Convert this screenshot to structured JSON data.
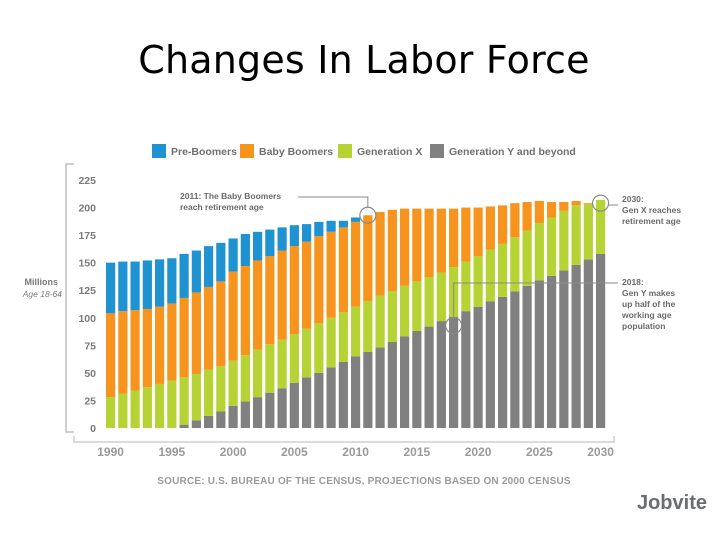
{
  "title": "Changes In Labor Force",
  "chart_data": {
    "type": "bar",
    "stacked": true,
    "ylabel": "Millions",
    "ylabel_sub": "Age 18-64",
    "ylim": [
      0,
      225
    ],
    "yticks": [
      0,
      25,
      50,
      75,
      100,
      125,
      150,
      175,
      200,
      225
    ],
    "x": [
      1990,
      1991,
      1992,
      1993,
      1994,
      1995,
      1996,
      1997,
      1998,
      1999,
      2000,
      2001,
      2002,
      2003,
      2004,
      2005,
      2006,
      2007,
      2008,
      2009,
      2010,
      2011,
      2012,
      2013,
      2014,
      2015,
      2016,
      2017,
      2018,
      2019,
      2020,
      2021,
      2022,
      2023,
      2024,
      2025,
      2026,
      2027,
      2028,
      2029,
      2030
    ],
    "xticks": [
      1990,
      1995,
      2000,
      2005,
      2010,
      2015,
      2020,
      2025,
      2030
    ],
    "colors": {
      "Pre-Boomers": "#1f92d1",
      "Baby Boomers": "#f7941e",
      "Generation X": "#b5d334",
      "Generation Y and beyond": "#808080"
    },
    "series": [
      {
        "name": "Generation Y and beyond",
        "values": [
          0,
          0,
          0,
          0,
          0,
          0,
          3,
          7,
          11,
          15,
          20,
          24,
          28,
          32,
          36,
          41,
          46,
          50,
          55,
          60,
          65,
          69,
          73,
          78,
          83,
          88,
          92,
          97,
          101,
          106,
          110,
          115,
          119,
          124,
          129,
          134,
          138,
          143,
          148,
          153,
          158
        ]
      },
      {
        "name": "Generation X",
        "values": [
          28,
          31,
          34,
          37,
          40,
          43,
          43,
          42,
          42,
          41,
          41,
          42,
          43,
          44,
          44,
          44,
          44,
          45,
          45,
          45,
          45,
          46,
          47,
          46,
          46,
          45,
          45,
          44,
          45,
          45,
          46,
          47,
          48,
          49,
          50,
          52,
          53,
          54,
          54,
          50,
          49
        ]
      },
      {
        "name": "Baby Boomers",
        "values": [
          76,
          75,
          73,
          71,
          70,
          70,
          72,
          74,
          75,
          77,
          81,
          81,
          81,
          80,
          81,
          80,
          79,
          79,
          78,
          77,
          77,
          78,
          76,
          74,
          70,
          66,
          62,
          58,
          53,
          49,
          44,
          39,
          35,
          31,
          26,
          20,
          14,
          8,
          4,
          1,
          0
        ]
      },
      {
        "name": "Pre-Boomers",
        "values": [
          46,
          45,
          44,
          44,
          43,
          41,
          40,
          38,
          37,
          35,
          30,
          29,
          26,
          24,
          21,
          19,
          16,
          13,
          10,
          6,
          4,
          0,
          0,
          0,
          0,
          0,
          0,
          0,
          0,
          0,
          0,
          0,
          0,
          0,
          0,
          0,
          0,
          0,
          0,
          0,
          0
        ]
      }
    ],
    "legend": [
      "Pre-Boomers",
      "Baby Boomers",
      "Generation X",
      "Generation Y and beyond"
    ],
    "legend_position": "top",
    "annotations": [
      {
        "year": 2011,
        "value": 193,
        "lines": [
          "2011: The Baby Boomers",
          "reach retirement age"
        ],
        "side": "left"
      },
      {
        "year": 2030,
        "value": 204,
        "lines": [
          "2030:",
          "Gen X reaches",
          "retirement age"
        ],
        "side": "right"
      },
      {
        "year": 2018,
        "value": 93,
        "lines": [
          "2018:",
          "Gen Y makes",
          "up half of the",
          "working age",
          "population"
        ],
        "side": "right"
      }
    ],
    "source": "SOURCE: U.S. BUREAU OF THE CENSUS, PROJECTIONS BASED ON 2000 CENSUS",
    "logo": "Jobvite"
  }
}
